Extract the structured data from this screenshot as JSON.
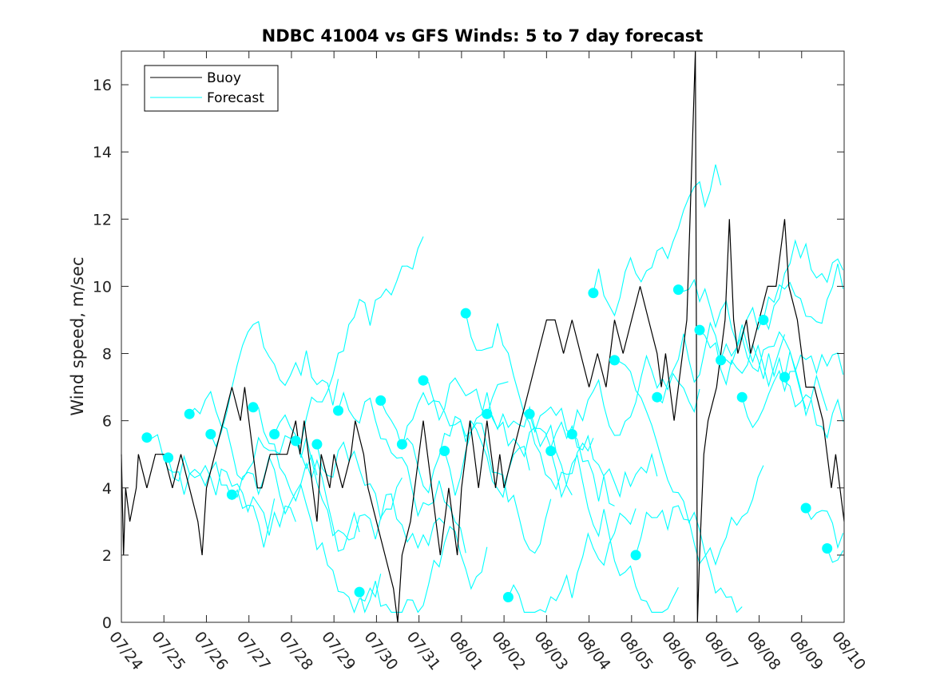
{
  "chart_data": {
    "type": "line",
    "title": "NDBC 41004 vs GFS Winds: 5 to 7 day forecast",
    "xlabel": "",
    "ylabel": "Wind speed, m/sec",
    "xlim": [
      0,
      17
    ],
    "ylim": [
      0,
      17
    ],
    "yticks": [
      0,
      2,
      4,
      6,
      8,
      10,
      12,
      14,
      16
    ],
    "xticks": [
      {
        "label": "07/24",
        "x": 0
      },
      {
        "label": "07/25",
        "x": 1
      },
      {
        "label": "07/26",
        "x": 2
      },
      {
        "label": "07/27",
        "x": 3
      },
      {
        "label": "07/28",
        "x": 4
      },
      {
        "label": "07/29",
        "x": 5
      },
      {
        "label": "07/30",
        "x": 6
      },
      {
        "label": "07/31",
        "x": 7
      },
      {
        "label": "08/01",
        "x": 8
      },
      {
        "label": "08/02",
        "x": 9
      },
      {
        "label": "08/03",
        "x": 10
      },
      {
        "label": "08/04",
        "x": 11
      },
      {
        "label": "08/05",
        "x": 12
      },
      {
        "label": "08/06",
        "x": 13
      },
      {
        "label": "08/07",
        "x": 14
      },
      {
        "label": "08/08",
        "x": 15
      },
      {
        "label": "08/09",
        "x": 16
      },
      {
        "label": "08/10",
        "x": 17
      }
    ],
    "legend": {
      "placement": "top-left",
      "entries": [
        "Buoy",
        "Forecast"
      ]
    },
    "grid": false,
    "colors": {
      "buoy": "#000000",
      "forecast": "#00ffff"
    },
    "series": [
      {
        "name": "Buoy",
        "color": "#000000",
        "points": [
          [
            0,
            5
          ],
          [
            0.05,
            2
          ],
          [
            0.1,
            4
          ],
          [
            0.2,
            3
          ],
          [
            0.35,
            4
          ],
          [
            0.4,
            5
          ],
          [
            0.6,
            4
          ],
          [
            0.8,
            5
          ],
          [
            1.0,
            5
          ],
          [
            1.2,
            4
          ],
          [
            1.4,
            5
          ],
          [
            1.6,
            4
          ],
          [
            1.8,
            3
          ],
          [
            1.9,
            2
          ],
          [
            2.0,
            4
          ],
          [
            2.2,
            5
          ],
          [
            2.4,
            6
          ],
          [
            2.6,
            7
          ],
          [
            2.8,
            6
          ],
          [
            2.9,
            7
          ],
          [
            3.0,
            6
          ],
          [
            3.1,
            5
          ],
          [
            3.2,
            4
          ],
          [
            3.3,
            4
          ],
          [
            3.5,
            5
          ],
          [
            3.7,
            5
          ],
          [
            3.9,
            5
          ],
          [
            4.1,
            6
          ],
          [
            4.2,
            5
          ],
          [
            4.3,
            6
          ],
          [
            4.5,
            4
          ],
          [
            4.6,
            3
          ],
          [
            4.7,
            5
          ],
          [
            4.9,
            4
          ],
          [
            5.0,
            5
          ],
          [
            5.2,
            4
          ],
          [
            5.4,
            5
          ],
          [
            5.5,
            6
          ],
          [
            5.7,
            5
          ],
          [
            5.8,
            4
          ],
          [
            6.0,
            3
          ],
          [
            6.2,
            2
          ],
          [
            6.4,
            1
          ],
          [
            6.5,
            0
          ],
          [
            6.6,
            2
          ],
          [
            6.8,
            3
          ],
          [
            7.0,
            5
          ],
          [
            7.1,
            6
          ],
          [
            7.3,
            4
          ],
          [
            7.4,
            3
          ],
          [
            7.5,
            2
          ],
          [
            7.6,
            3
          ],
          [
            7.7,
            4
          ],
          [
            7.8,
            3
          ],
          [
            7.9,
            2
          ],
          [
            8.0,
            4
          ],
          [
            8.1,
            5
          ],
          [
            8.2,
            6
          ],
          [
            8.3,
            5
          ],
          [
            8.4,
            4
          ],
          [
            8.5,
            5
          ],
          [
            8.6,
            6
          ],
          [
            8.7,
            5
          ],
          [
            8.8,
            4
          ],
          [
            8.9,
            5
          ],
          [
            9.0,
            4
          ],
          [
            9.2,
            5
          ],
          [
            9.4,
            6
          ],
          [
            9.6,
            7
          ],
          [
            9.8,
            8
          ],
          [
            10.0,
            9
          ],
          [
            10.2,
            9
          ],
          [
            10.4,
            8
          ],
          [
            10.6,
            9
          ],
          [
            10.8,
            8
          ],
          [
            11.0,
            7
          ],
          [
            11.2,
            8
          ],
          [
            11.4,
            7
          ],
          [
            11.5,
            8
          ],
          [
            11.6,
            9
          ],
          [
            11.8,
            8
          ],
          [
            12.0,
            9
          ],
          [
            12.2,
            10
          ],
          [
            12.4,
            9
          ],
          [
            12.6,
            8
          ],
          [
            12.7,
            7
          ],
          [
            12.8,
            8
          ],
          [
            12.9,
            7
          ],
          [
            13.0,
            6
          ],
          [
            13.1,
            7
          ],
          [
            13.2,
            8
          ],
          [
            13.3,
            9
          ],
          [
            13.5,
            17
          ],
          [
            13.55,
            0
          ],
          [
            13.6,
            2
          ],
          [
            13.7,
            5
          ],
          [
            13.8,
            6
          ],
          [
            14.0,
            7
          ],
          [
            14.1,
            8
          ],
          [
            14.2,
            9
          ],
          [
            14.3,
            12
          ],
          [
            14.4,
            9
          ],
          [
            14.5,
            8
          ],
          [
            14.7,
            9
          ],
          [
            14.8,
            8
          ],
          [
            15.0,
            9
          ],
          [
            15.2,
            10
          ],
          [
            15.4,
            10
          ],
          [
            15.5,
            11
          ],
          [
            15.6,
            12
          ],
          [
            15.7,
            10
          ],
          [
            15.9,
            9
          ],
          [
            16.0,
            8
          ],
          [
            16.1,
            7
          ],
          [
            16.3,
            7
          ],
          [
            16.5,
            6
          ],
          [
            16.7,
            4
          ],
          [
            16.8,
            5
          ],
          [
            17.0,
            3
          ]
        ]
      }
    ],
    "forecast_points": [
      [
        0.6,
        5.5
      ],
      [
        1.1,
        4.9
      ],
      [
        1.6,
        6.2
      ],
      [
        2.1,
        5.6
      ],
      [
        2.6,
        3.8
      ],
      [
        3.1,
        6.4
      ],
      [
        3.6,
        5.6
      ],
      [
        4.1,
        5.4
      ],
      [
        4.6,
        5.3
      ],
      [
        5.1,
        6.3
      ],
      [
        5.6,
        0.9
      ],
      [
        6.1,
        6.6
      ],
      [
        6.6,
        5.3
      ],
      [
        7.1,
        7.2
      ],
      [
        7.6,
        5.1
      ],
      [
        8.1,
        9.2
      ],
      [
        8.6,
        6.2
      ],
      [
        9.1,
        0.75
      ],
      [
        9.6,
        6.2
      ],
      [
        10.1,
        5.1
      ],
      [
        10.6,
        5.6
      ],
      [
        11.1,
        9.8
      ],
      [
        11.6,
        7.8
      ],
      [
        12.1,
        2.0
      ],
      [
        12.6,
        6.7
      ],
      [
        13.1,
        9.9
      ],
      [
        13.6,
        8.7
      ],
      [
        14.1,
        7.8
      ],
      [
        14.6,
        6.7
      ],
      [
        15.1,
        9.0
      ],
      [
        15.6,
        7.3
      ],
      [
        16.1,
        3.4
      ],
      [
        16.6,
        2.2
      ]
    ]
  }
}
